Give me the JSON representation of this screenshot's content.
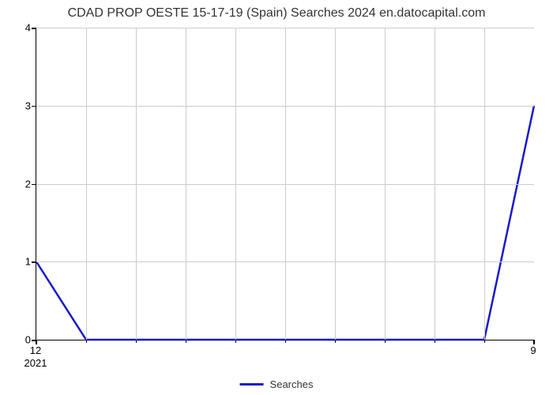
{
  "chart": {
    "type": "line",
    "title": "CDAD PROP OESTE 15-17-19 (Spain) Searches 2024 en.datocapital.com",
    "title_fontsize": 16,
    "title_color": "#333333",
    "background_color": "#ffffff",
    "plot_border_color": "#000000",
    "grid_color": "#cccccc",
    "ylim": [
      0,
      4
    ],
    "yticks": [
      0,
      1,
      2,
      3,
      4
    ],
    "ytick_fontsize": 13,
    "xtick_left_label": "12",
    "xtick_left_sublabel": "2021",
    "xtick_right_label": "9",
    "xtick_fontsize": 13,
    "minor_ticks_count": 9,
    "vgrid_count": 9,
    "series": {
      "name": "Searches",
      "color": "#1919c8",
      "line_width": 2.5,
      "points": [
        {
          "x": 0.0,
          "y": 1.0
        },
        {
          "x": 0.1,
          "y": 0.0
        },
        {
          "x": 0.9,
          "y": 0.0
        },
        {
          "x": 1.0,
          "y": 3.0
        }
      ]
    },
    "legend_label": "Searches",
    "legend_fontsize": 13,
    "legend_color": "#333333"
  }
}
